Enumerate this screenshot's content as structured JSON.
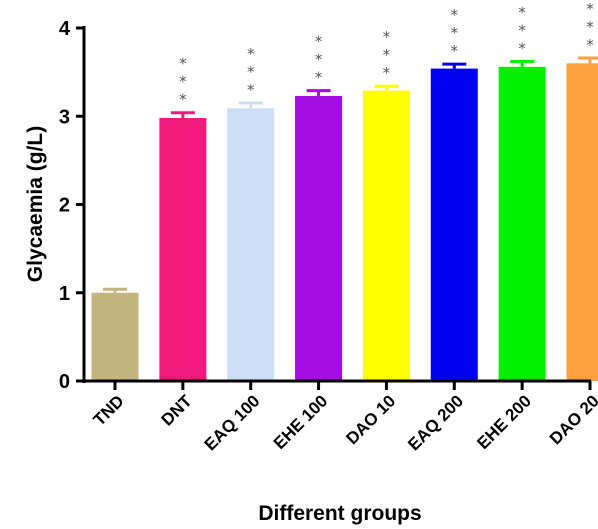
{
  "chart_data": {
    "type": "bar",
    "categories": [
      "TND",
      "DNT",
      "EAQ 100",
      "EHE 100",
      "DAO 10",
      "EAQ 200",
      "EHE 200",
      "DAO 20"
    ],
    "values": [
      1.0,
      2.98,
      3.09,
      3.23,
      3.29,
      3.54,
      3.56,
      3.6
    ],
    "errors": [
      0.04,
      0.06,
      0.06,
      0.06,
      0.05,
      0.05,
      0.06,
      0.06
    ],
    "colors": [
      "#C4B47E",
      "#F2197E",
      "#CBE0F7",
      "#A50CE0",
      "#FFFF00",
      "#0000F0",
      "#00F000",
      "#FFA040"
    ],
    "significance": [
      "",
      "***",
      "***",
      "***",
      "***",
      "***",
      "***",
      "***"
    ],
    "xlabel": "Different groups",
    "ylabel": "Glycaemia (g/L)",
    "ylim": [
      0,
      4
    ],
    "yticks": [
      0,
      1,
      2,
      3,
      4
    ],
    "grid": false
  }
}
